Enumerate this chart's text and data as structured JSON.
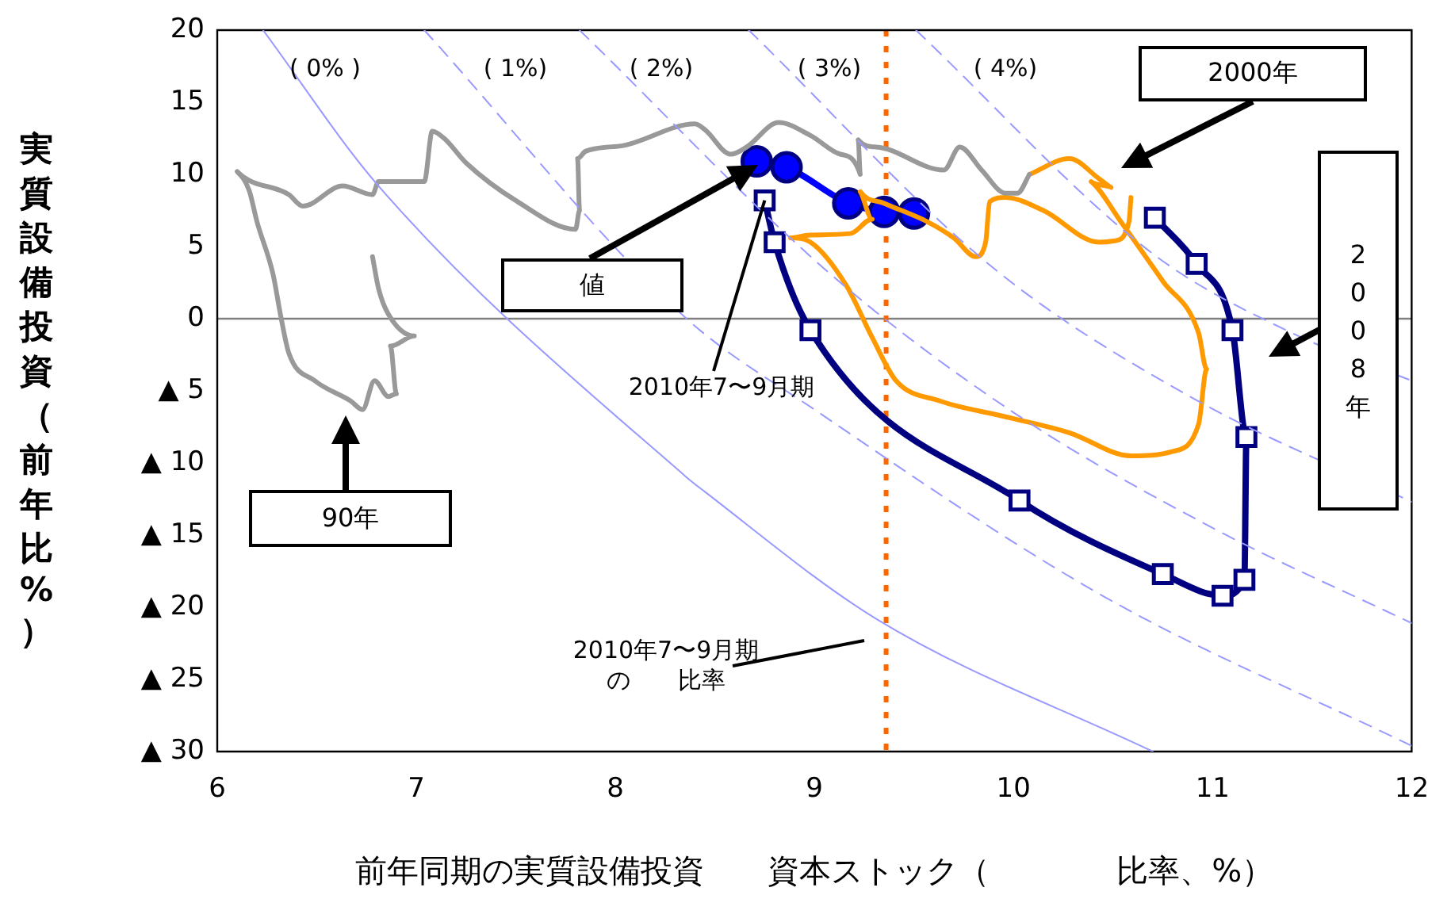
{
  "chart_data": {
    "type": "line",
    "xlabel": "前年同期の実質設備投資　　資本ストック（　　　　比率、%）",
    "ylabel": "実質設備投資（前年比%）",
    "xlim": [
      6,
      12
    ],
    "xticks": [
      6,
      7,
      8,
      9,
      10,
      11,
      12
    ],
    "ylim": [
      -30,
      20
    ],
    "yticks": [
      20,
      15,
      10,
      5,
      0,
      {
        "value": -5,
        "label": "▲ 5"
      },
      {
        "value": -10,
        "label": "▲ 10"
      },
      {
        "value": -15,
        "label": "▲ 15"
      },
      {
        "value": -20,
        "label": "▲ 20"
      },
      {
        "value": -25,
        "label": "▲ 25"
      },
      {
        "value": -30,
        "label": "▲ 30"
      }
    ],
    "ref_lines": [
      {
        "axis": "y",
        "value": 0,
        "color": "#808080",
        "line_style": "solid"
      },
      {
        "axis": "x",
        "value": 9.36,
        "color": "#ff6600",
        "line_style": "dotted"
      }
    ],
    "annotations": [
      "(   0%        )",
      "(  1%)",
      "(  2%)",
      "(  3%)",
      "(  4%)",
      "値",
      {
        "text": "2010年7〜9月期",
        "x": 8.75,
        "y": 8.2
      },
      "2000年",
      "2008年",
      "90年",
      "2010年7〜9月期の　　比率"
    ],
    "series": [
      {
        "color": "#9999ff",
        "line_style": "solid",
        "marker": "none",
        "x": [
          6.23,
          6.81,
          8.35,
          8.45,
          9.31,
          10.7
        ],
        "values": [
          20,
          9.2,
          -10.9,
          -12,
          -20.8,
          -30
        ]
      },
      {
        "color": "#9999ff",
        "line_style": "dashed",
        "marker": "none",
        "x": [
          7.04,
          8.35,
          9.0,
          10.46,
          12
        ],
        "values": [
          20,
          0.1,
          -6.3,
          -19.3,
          -29.6
        ]
      },
      {
        "color": "#9999ff",
        "line_style": "dashed",
        "marker": "none",
        "x": [
          7.82,
          9.08,
          10.0,
          11.0,
          12
        ],
        "values": [
          20,
          3.1,
          -6.5,
          -14.5,
          -21.1
        ]
      },
      {
        "color": "#9999ff",
        "line_style": "dashed",
        "marker": "none",
        "x": [
          8.67,
          9.9,
          10.9,
          12
        ],
        "values": [
          20,
          3.5,
          -5.5,
          -12.7
        ]
      },
      {
        "color": "#9999ff",
        "line_style": "dashed",
        "marker": "none",
        "x": [
          9.51,
          10.7,
          11.4,
          12
        ],
        "values": [
          20,
          4.5,
          -1,
          -4.3
        ]
      },
      {
        "color": "#999999",
        "line_style": "solid",
        "marker": "none",
        "x": [
          6.78,
          6.81,
          6.86,
          6.99,
          6.87,
          6.9,
          6.86,
          6.79,
          6.73,
          6.67,
          6.49,
          6.36,
          6.32,
          6.28,
          6.2,
          6.16,
          6.1,
          6.36,
          6.43,
          6.63,
          6.78,
          6.81,
          7.04,
          7.08,
          7.14,
          7.25,
          7.51,
          7.8,
          7.82,
          7.81,
          7.85,
          8.04,
          8.4,
          8.45,
          8.58,
          8.66,
          8.82,
          8.98,
          9.13,
          9.23,
          9.22,
          9.31,
          9.65,
          9.73,
          9.84,
          9.96,
          10.02,
          10.08
        ],
        "values": [
          4.3,
          2.1,
          0.3,
          -1.2,
          -1.9,
          -5.2,
          -5.4,
          -4.3,
          -6.3,
          -5.7,
          -4.3,
          -2.4,
          0.1,
          3.1,
          6.7,
          8.9,
          10.2,
          8.6,
          7.8,
          9.2,
          8.6,
          9.5,
          9.5,
          13,
          12.5,
          10.8,
          8.1,
          6.2,
          7.5,
          11.1,
          11.6,
          12,
          13.5,
          13.1,
          11.4,
          11.9,
          13.6,
          12.7,
          11.4,
          10,
          12.4,
          11.9,
          10.3,
          11.9,
          10.3,
          8.7,
          8.7,
          10
        ]
      },
      {
        "color": "#ff9900",
        "line_style": "solid",
        "marker": "none",
        "x": [
          10.08,
          10.28,
          10.43,
          10.49,
          10.39,
          10.54,
          10.75,
          10.93,
          10.97,
          10.93,
          10.8,
          10.59,
          10.28,
          9.96,
          9.63,
          9.41,
          9.29,
          9.16,
          8.98,
          8.88,
          8.98,
          9.18,
          9.29,
          9.23,
          9.35,
          9.57,
          9.7,
          9.81,
          9.86,
          9.88,
          9.96,
          10.15,
          10.43,
          10.51,
          10.58,
          10.59
        ],
        "values": [
          10,
          11.1,
          9.7,
          9.1,
          9.5,
          6.7,
          2.6,
          -1,
          -3.5,
          -7.3,
          -9.2,
          -9.5,
          -7.9,
          -6.8,
          -5.7,
          -4.3,
          -1.3,
          2.3,
          5.3,
          5.6,
          5.8,
          5.9,
          6.9,
          8.8,
          8,
          6.7,
          5.6,
          4.3,
          5.3,
          8.1,
          8.4,
          7.5,
          5.3,
          5.4,
          6.7,
          8.4
        ]
      },
      {
        "color": "#000080",
        "line_style": "solid",
        "marker": "square",
        "x": [
          10.71,
          10.92,
          11.1,
          11.17,
          11.16,
          11.05,
          10.75,
          10.03,
          8.98,
          8.8,
          8.75
        ],
        "values": [
          7,
          3.8,
          -0.8,
          -8.2,
          -18.1,
          -19.2,
          -17.7,
          -12.6,
          -0.8,
          5.3,
          8.2
        ]
      },
      {
        "color": "#0000ff",
        "line_style": "solid",
        "marker": "circle",
        "x": [
          8.71,
          8.86,
          9.17,
          9.35,
          9.5
        ],
        "values": [
          10.9,
          10.5,
          8,
          7.4,
          7.3
        ]
      }
    ]
  }
}
